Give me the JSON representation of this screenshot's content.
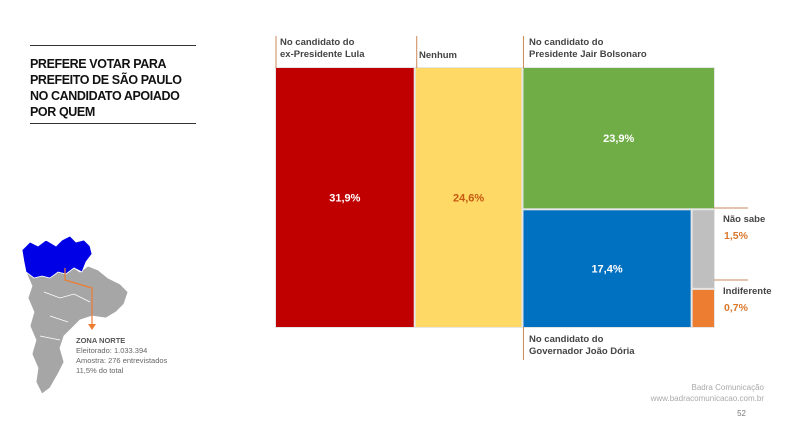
{
  "title_lines": [
    "PREFERE VOTAR PARA",
    "PREFEITO DE SÃO PAULO",
    "NO CANDIDATO APOIADO",
    "POR QUEM"
  ],
  "zone": {
    "name": "ZONA NORTE",
    "electorate": "Eleitorado: 1.033.394",
    "sample": "Amostra: 276 entrevistados",
    "share": "11,5% do total"
  },
  "chart_data": {
    "type": "treemap",
    "unit": "%",
    "cells": [
      {
        "label_lines": [
          "No candidato do",
          "ex-Presidente Lula"
        ],
        "value": 31.9,
        "value_text": "31,9%",
        "color": "#c00000",
        "text_color": "#ffffff"
      },
      {
        "label_lines": [
          "Nenhum"
        ],
        "value": 24.6,
        "value_text": "24,6%",
        "color": "#ffd966",
        "text_color": "#c55a11"
      },
      {
        "label_lines": [
          "No candidato do",
          "Presidente Jair Bolsonaro"
        ],
        "value": 23.9,
        "value_text": "23,9%",
        "color": "#70ad47",
        "text_color": "#ffffff"
      },
      {
        "label_lines": [
          "No candidato do",
          "Governador João Dória"
        ],
        "value": 17.4,
        "value_text": "17,4%",
        "color": "#0070c0",
        "text_color": "#ffffff"
      },
      {
        "label_lines": [
          "Não sabe"
        ],
        "value": 1.5,
        "value_text": "1,5%",
        "color": "#bfbfbf",
        "text_color": "#d9772c"
      },
      {
        "label_lines": [
          "Indiferente"
        ],
        "value": 0.7,
        "value_text": "0,7%",
        "color": "#ed7d31",
        "text_color": "#d9772c"
      }
    ]
  },
  "footer": {
    "company": "Badra Comunicação",
    "website": "www.badracomunicacao.com.br",
    "page": "52"
  }
}
